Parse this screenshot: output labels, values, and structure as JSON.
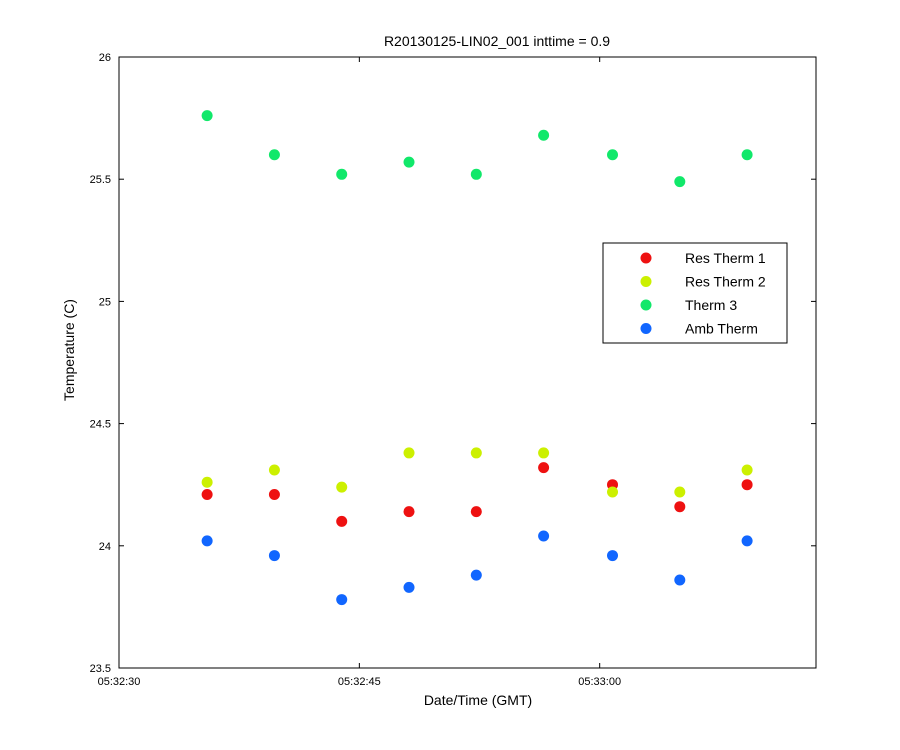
{
  "chart_data": {
    "type": "scatter",
    "title": "R20130125-LIN02_001 inttime = 0.9",
    "xlabel": "Date/Time (GMT)",
    "ylabel": "Temperature (C)",
    "x_unit": "time",
    "xlim": [
      "05:32:30",
      "05:33:13.5"
    ],
    "ylim": [
      23.5,
      26
    ],
    "x_ticks": [
      "05:32:30",
      "05:32:45",
      "05:33:00"
    ],
    "y_ticks": [
      "23.5",
      "24",
      "24.5",
      "25",
      "25.5",
      "26"
    ],
    "grid": false,
    "legend_position": "right",
    "x": [
      "05:32:35.5",
      "05:32:39.7",
      "05:32:43.9",
      "05:32:48.1",
      "05:32:52.3",
      "05:32:56.5",
      "05:33:00.8",
      "05:33:05.0",
      "05:33:09.2"
    ],
    "series": [
      {
        "name": "Res Therm 1",
        "color": "#ee1111",
        "values": [
          24.21,
          24.21,
          24.1,
          24.14,
          24.14,
          24.32,
          24.25,
          24.16,
          24.25
        ]
      },
      {
        "name": "Res Therm 2",
        "color": "#ccf000",
        "values": [
          24.26,
          24.31,
          24.24,
          24.38,
          24.38,
          24.38,
          24.22,
          24.22,
          24.31
        ]
      },
      {
        "name": "Therm 3",
        "color": "#11e86a",
        "values": [
          25.76,
          25.6,
          25.52,
          25.57,
          25.52,
          25.68,
          25.6,
          25.49,
          25.6
        ]
      },
      {
        "name": "Amb Therm",
        "color": "#1166ff",
        "values": [
          24.02,
          23.96,
          23.78,
          23.83,
          23.88,
          24.04,
          23.96,
          23.86,
          24.02
        ]
      }
    ]
  }
}
